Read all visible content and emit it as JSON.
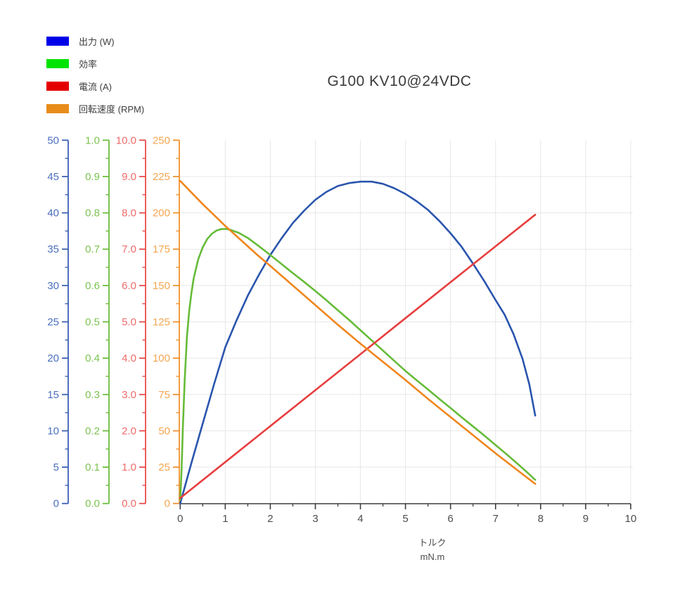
{
  "chart_data": {
    "type": "line",
    "title": "G100 KV10@24VDC",
    "grid": {
      "color": "#e7e7e7",
      "vertical_at_x": [
        1,
        2,
        3,
        4,
        5,
        6,
        7,
        8,
        9,
        10
      ],
      "horizontal_at_rpm": [
        25,
        50,
        75,
        100,
        125,
        150,
        175,
        200,
        225
      ]
    },
    "x_axis": {
      "title_lines": [
        "トルク",
        "mN.m"
      ],
      "min": 0,
      "max": 10,
      "major_step": 1,
      "minor_step": 0.5,
      "ticks": [
        "0",
        "1",
        "2",
        "3",
        "4",
        "5",
        "6",
        "7",
        "8",
        "9",
        "10"
      ],
      "line_color": "#3d3d3d",
      "label_color": "#4d4d4d"
    },
    "y_axes": [
      {
        "id": "power",
        "name": "出力 (W)",
        "min": 0,
        "max": 50,
        "ticks": [
          "0",
          "5",
          "10",
          "15",
          "20",
          "25",
          "30",
          "35",
          "40",
          "45",
          "50"
        ],
        "axis_color": "#3c60b4",
        "label_color": "#4a6fbe"
      },
      {
        "id": "efficiency",
        "name": "効率",
        "min": 0,
        "max": 1,
        "ticks": [
          "0.0",
          "0.1",
          "0.2",
          "0.3",
          "0.4",
          "0.5",
          "0.6",
          "0.7",
          "0.8",
          "0.9",
          "1.0"
        ],
        "axis_color": "#6cbc3e",
        "label_color": "#7cc351"
      },
      {
        "id": "current",
        "name": "電流 (A)",
        "min": 0,
        "max": 10,
        "ticks": [
          "0.0",
          "1.0",
          "2.0",
          "3.0",
          "4.0",
          "5.0",
          "6.0",
          "7.0",
          "8.0",
          "9.0",
          "10.0"
        ],
        "axis_color": "#e94b4b",
        "label_color": "#ef6a6a"
      },
      {
        "id": "rpm",
        "name": "回転速度 (RPM)",
        "min": 0,
        "max": 250,
        "ticks": [
          "0",
          "25",
          "50",
          "75",
          "100",
          "125",
          "150",
          "175",
          "200",
          "225",
          "250"
        ],
        "axis_color": "#f0912e",
        "label_color": "#f5a54f"
      }
    ],
    "legend": [
      {
        "label": "出力 (W)",
        "swatch": "#0000e8"
      },
      {
        "label": "効率",
        "swatch": "#00e400"
      },
      {
        "label": "電流 (A)",
        "swatch": "#e40000"
      },
      {
        "label": "回転速度 (RPM)",
        "swatch": "#e88c1a"
      }
    ],
    "series": [
      {
        "name": "出力 (W)",
        "axis": "power",
        "color": "#2a55ae",
        "points": [
          [
            0,
            0
          ],
          [
            0.25,
            5.6
          ],
          [
            0.5,
            11
          ],
          [
            0.75,
            16.4
          ],
          [
            1,
            21.5
          ],
          [
            1.25,
            25.2
          ],
          [
            1.5,
            28.6
          ],
          [
            1.75,
            31.5
          ],
          [
            2,
            34.2
          ],
          [
            2.25,
            36.5
          ],
          [
            2.5,
            38.6
          ],
          [
            2.75,
            40.3
          ],
          [
            3,
            41.8
          ],
          [
            3.25,
            42.9
          ],
          [
            3.5,
            43.7
          ],
          [
            3.75,
            44.1
          ],
          [
            4,
            44.3
          ],
          [
            4.25,
            44.3
          ],
          [
            4.5,
            44.0
          ],
          [
            4.75,
            43.4
          ],
          [
            5,
            42.6
          ],
          [
            5.25,
            41.6
          ],
          [
            5.5,
            40.4
          ],
          [
            5.75,
            38.9
          ],
          [
            6,
            37.2
          ],
          [
            6.25,
            35.3
          ],
          [
            6.5,
            33.0
          ],
          [
            6.75,
            30.6
          ],
          [
            7,
            28.0
          ],
          [
            7.2,
            26.0
          ],
          [
            7.4,
            23.3
          ],
          [
            7.6,
            19.9
          ],
          [
            7.75,
            16.4
          ],
          [
            7.88,
            12.1
          ]
        ]
      },
      {
        "name": "効率",
        "axis": "efficiency",
        "color": "#66bb38",
        "points": [
          [
            0,
            0.01
          ],
          [
            0.03,
            0.09
          ],
          [
            0.06,
            0.21
          ],
          [
            0.1,
            0.34
          ],
          [
            0.15,
            0.46
          ],
          [
            0.2,
            0.53
          ],
          [
            0.25,
            0.58
          ],
          [
            0.3,
            0.62
          ],
          [
            0.4,
            0.672
          ],
          [
            0.5,
            0.705
          ],
          [
            0.6,
            0.728
          ],
          [
            0.7,
            0.742
          ],
          [
            0.8,
            0.751
          ],
          [
            0.9,
            0.755
          ],
          [
            1,
            0.756
          ],
          [
            1.1,
            0.754
          ],
          [
            1.3,
            0.745
          ],
          [
            1.5,
            0.731
          ],
          [
            1.75,
            0.708
          ],
          [
            2,
            0.684
          ],
          [
            2.25,
            0.659
          ],
          [
            2.5,
            0.634
          ],
          [
            2.75,
            0.61
          ],
          [
            3,
            0.585
          ],
          [
            3.25,
            0.559
          ],
          [
            3.5,
            0.532
          ],
          [
            3.75,
            0.505
          ],
          [
            4,
            0.477
          ],
          [
            4.25,
            0.449
          ],
          [
            4.5,
            0.421
          ],
          [
            4.75,
            0.393
          ],
          [
            5,
            0.365
          ],
          [
            5.25,
            0.339
          ],
          [
            5.5,
            0.314
          ],
          [
            5.75,
            0.288
          ],
          [
            6,
            0.263
          ],
          [
            6.25,
            0.237
          ],
          [
            6.5,
            0.212
          ],
          [
            6.75,
            0.187
          ],
          [
            7,
            0.161
          ],
          [
            7.25,
            0.135
          ],
          [
            7.5,
            0.108
          ],
          [
            7.7,
            0.086
          ],
          [
            7.88,
            0.065
          ]
        ]
      },
      {
        "name": "電流 (A)",
        "axis": "current",
        "color": "#e73e3e",
        "points": [
          [
            0,
            0.15
          ],
          [
            1,
            1.14
          ],
          [
            2,
            2.13
          ],
          [
            3,
            3.12
          ],
          [
            4,
            4.11
          ],
          [
            5,
            5.1
          ],
          [
            6,
            6.09
          ],
          [
            7,
            7.08
          ],
          [
            7.88,
            7.95
          ]
        ]
      },
      {
        "name": "回転速度 (RPM)",
        "axis": "rpm",
        "color": "#ef861c",
        "points": [
          [
            0,
            222
          ],
          [
            0.25,
            214
          ],
          [
            0.5,
            206
          ],
          [
            0.75,
            198.5
          ],
          [
            1,
            191
          ],
          [
            1.25,
            184
          ],
          [
            1.5,
            177
          ],
          [
            1.75,
            170
          ],
          [
            2,
            163.5
          ],
          [
            2.5,
            150
          ],
          [
            3,
            136.5
          ],
          [
            3.5,
            123
          ],
          [
            4,
            110
          ],
          [
            4.5,
            97.5
          ],
          [
            5,
            85
          ],
          [
            5.5,
            72
          ],
          [
            6,
            59.5
          ],
          [
            6.5,
            47
          ],
          [
            7,
            34.5
          ],
          [
            7.4,
            25
          ],
          [
            7.65,
            19
          ],
          [
            7.88,
            13.5
          ]
        ]
      }
    ]
  }
}
